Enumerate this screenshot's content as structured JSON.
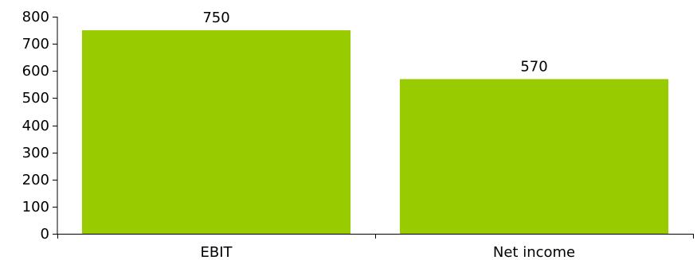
{
  "chart_data": {
    "type": "bar",
    "title": "",
    "xlabel": "",
    "ylabel": "",
    "categories": [
      "EBIT",
      "Net income"
    ],
    "values": [
      750,
      570
    ],
    "data_labels": [
      "750",
      "570"
    ],
    "ylim": [
      0,
      800
    ],
    "yticks": [
      0,
      100,
      200,
      300,
      400,
      500,
      600,
      700,
      800
    ],
    "grid": false,
    "legend": "none",
    "bar_color": "#99cc00",
    "axis_color": "#000000"
  }
}
